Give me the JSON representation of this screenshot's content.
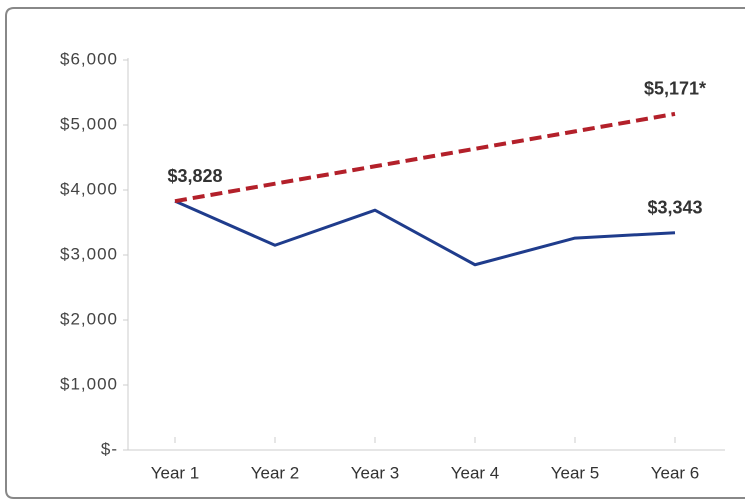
{
  "chart_data": {
    "type": "line",
    "categories": [
      "Year 1",
      "Year 2",
      "Year 3",
      "Year 4",
      "Year 5",
      "Year 6"
    ],
    "series": [
      {
        "color": "#1f3c8c",
        "style": "solid",
        "values": [
          3828,
          3150,
          3690,
          2850,
          3260,
          3343
        ],
        "value_labels": [
          "$3,828",
          null,
          null,
          null,
          null,
          "$3,343"
        ]
      },
      {
        "color": "#b3202a",
        "style": "dashed",
        "values": [
          3828,
          4097,
          4365,
          4634,
          4902,
          5171
        ],
        "value_labels": [
          null,
          null,
          null,
          null,
          null,
          "$5,171*"
        ]
      }
    ],
    "ylim": [
      0,
      6000
    ],
    "yticks": [
      {
        "value": 0,
        "label": "$-"
      },
      {
        "value": 1000,
        "label": "$1,000"
      },
      {
        "value": 2000,
        "label": "$2,000"
      },
      {
        "value": 3000,
        "label": "$3,000"
      },
      {
        "value": 4000,
        "label": "$4,000"
      },
      {
        "value": 5000,
        "label": "$5,000"
      },
      {
        "value": 6000,
        "label": "$6,000"
      }
    ],
    "grid": false
  }
}
